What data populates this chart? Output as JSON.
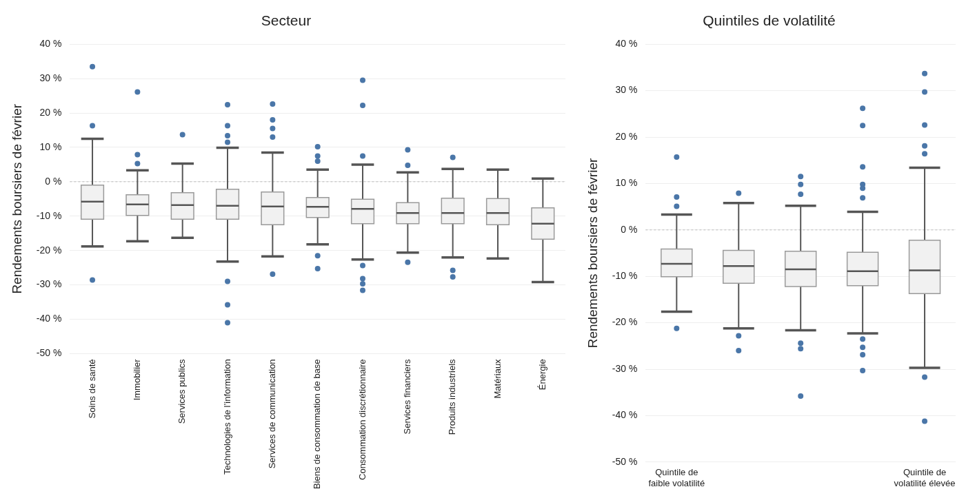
{
  "chart_data": [
    {
      "type": "box",
      "title": "Secteur",
      "ylabel": "Rendements boursiers de février",
      "color": "#f1f1f1",
      "grid": "y",
      "categories": [
        "Soins de santé",
        "Immobilier",
        "Services publics",
        "Technologies de l’information",
        "Services de communication",
        "Biens de consommation de base",
        "Consommation discrétionnaire",
        "Services financiers",
        "Produits industriels",
        "Matériaux",
        "Énergie"
      ],
      "ylim": [
        -50,
        40
      ],
      "yticks": [
        {
          "value": -50,
          "label": "-50 %"
        },
        {
          "value": -40,
          "label": "-40 %"
        },
        {
          "value": -30,
          "label": "-30 %"
        },
        {
          "value": -20,
          "label": "-20 %"
        },
        {
          "value": -10,
          "label": "-10 %"
        },
        {
          "value": 0,
          "label": "0 %"
        },
        {
          "value": 10,
          "label": "10 %"
        },
        {
          "value": 20,
          "label": "20 %"
        },
        {
          "value": 30,
          "label": "30 %"
        },
        {
          "value": 40,
          "label": "40 %"
        }
      ],
      "ref_lines": [
        {
          "axis": "y",
          "value": 0,
          "color": "#bbbbbb",
          "line_style": "dashed"
        }
      ],
      "boxes": [
        {
          "low": -18.8,
          "q1": -10.9,
          "median": -5.8,
          "q3": -1.0,
          "high": 12.5,
          "outliers": [
            33.5,
            16.3,
            -28.6
          ]
        },
        {
          "low": -17.3,
          "q1": -9.8,
          "median": -6.6,
          "q3": -3.8,
          "high": 3.3,
          "outliers": [
            26.1,
            7.9,
            5.3
          ]
        },
        {
          "low": -16.3,
          "q1": -10.9,
          "median": -6.8,
          "q3": -3.2,
          "high": 5.3,
          "outliers": [
            13.7
          ]
        },
        {
          "low": -23.2,
          "q1": -10.9,
          "median": -7.0,
          "q3": -2.2,
          "high": 9.9,
          "outliers": [
            22.4,
            16.3,
            13.4,
            11.5,
            -29.0,
            -35.8,
            -41.0
          ]
        },
        {
          "low": -21.7,
          "q1": -12.5,
          "median": -7.2,
          "q3": -3.0,
          "high": 8.5,
          "outliers": [
            22.6,
            18.0,
            15.5,
            13.0,
            -26.9
          ]
        },
        {
          "low": -18.2,
          "q1": -10.4,
          "median": -7.3,
          "q3": -4.6,
          "high": 3.5,
          "outliers": [
            10.2,
            7.5,
            6.0,
            -21.5,
            -25.3
          ]
        },
        {
          "low": -22.6,
          "q1": -12.2,
          "median": -7.9,
          "q3": -5.1,
          "high": 5.0,
          "outliers": [
            29.5,
            22.2,
            7.5,
            -24.4,
            -28.2,
            -29.7,
            -31.6
          ]
        },
        {
          "low": -20.6,
          "q1": -12.2,
          "median": -9.1,
          "q3": -6.1,
          "high": 2.7,
          "outliers": [
            9.3,
            4.8,
            -23.4
          ]
        },
        {
          "low": -22.0,
          "q1": -12.2,
          "median": -9.1,
          "q3": -4.8,
          "high": 3.7,
          "outliers": [
            7.1,
            -25.8,
            -27.7
          ]
        },
        {
          "low": -22.3,
          "q1": -12.5,
          "median": -9.1,
          "q3": -4.9,
          "high": 3.5
        },
        {
          "low": -29.2,
          "q1": -16.7,
          "median": -12.2,
          "q3": -7.6,
          "high": 0.9
        }
      ]
    },
    {
      "type": "box",
      "title": "Quintiles de volatilité",
      "ylabel": "Rendements boursiers de février",
      "color": "#f1f1f1",
      "grid": "y",
      "categories": [
        "Quintile de\nfaible volatilité",
        null,
        null,
        null,
        "Quintile de\nvolatilité élevée"
      ],
      "ylim": [
        -50,
        40
      ],
      "yticks": [
        {
          "value": -50,
          "label": "-50 %"
        },
        {
          "value": -40,
          "label": "-40 %"
        },
        {
          "value": -30,
          "label": "-30 %"
        },
        {
          "value": -20,
          "label": "-20 %"
        },
        {
          "value": -10,
          "label": "-10 %"
        },
        {
          "value": 0,
          "label": "0 %"
        },
        {
          "value": 10,
          "label": "10 %"
        },
        {
          "value": 20,
          "label": "20 %"
        },
        {
          "value": 30,
          "label": "30 %"
        },
        {
          "value": 40,
          "label": "40 %"
        }
      ],
      "ref_lines": [
        {
          "axis": "y",
          "value": 0,
          "color": "#bbbbbb",
          "line_style": "dashed"
        }
      ],
      "boxes": [
        {
          "low": -17.6,
          "q1": -10.1,
          "median": -7.3,
          "q3": -4.1,
          "high": 3.3,
          "outliers": [
            15.7,
            7.1,
            5.1,
            -21.2
          ]
        },
        {
          "low": -21.2,
          "q1": -11.5,
          "median": -7.8,
          "q3": -4.4,
          "high": 5.8,
          "outliers": [
            7.9,
            -22.8,
            -26.0
          ]
        },
        {
          "low": -21.6,
          "q1": -12.2,
          "median": -8.5,
          "q3": -4.6,
          "high": 5.2,
          "outliers": [
            11.5,
            9.8,
            7.7,
            -24.4,
            -25.6,
            -35.8
          ]
        },
        {
          "low": -22.3,
          "q1": -12.0,
          "median": -8.9,
          "q3": -4.8,
          "high": 3.9,
          "outliers": [
            26.2,
            22.5,
            13.6,
            9.8,
            9.0,
            6.9,
            -23.5,
            -25.3,
            -26.9,
            -30.3
          ]
        },
        {
          "low": -29.7,
          "q1": -13.7,
          "median": -8.7,
          "q3": -2.2,
          "high": 13.4,
          "outliers": [
            33.7,
            29.7,
            22.6,
            18.1,
            16.4,
            -31.7,
            -41.2
          ]
        }
      ]
    }
  ]
}
